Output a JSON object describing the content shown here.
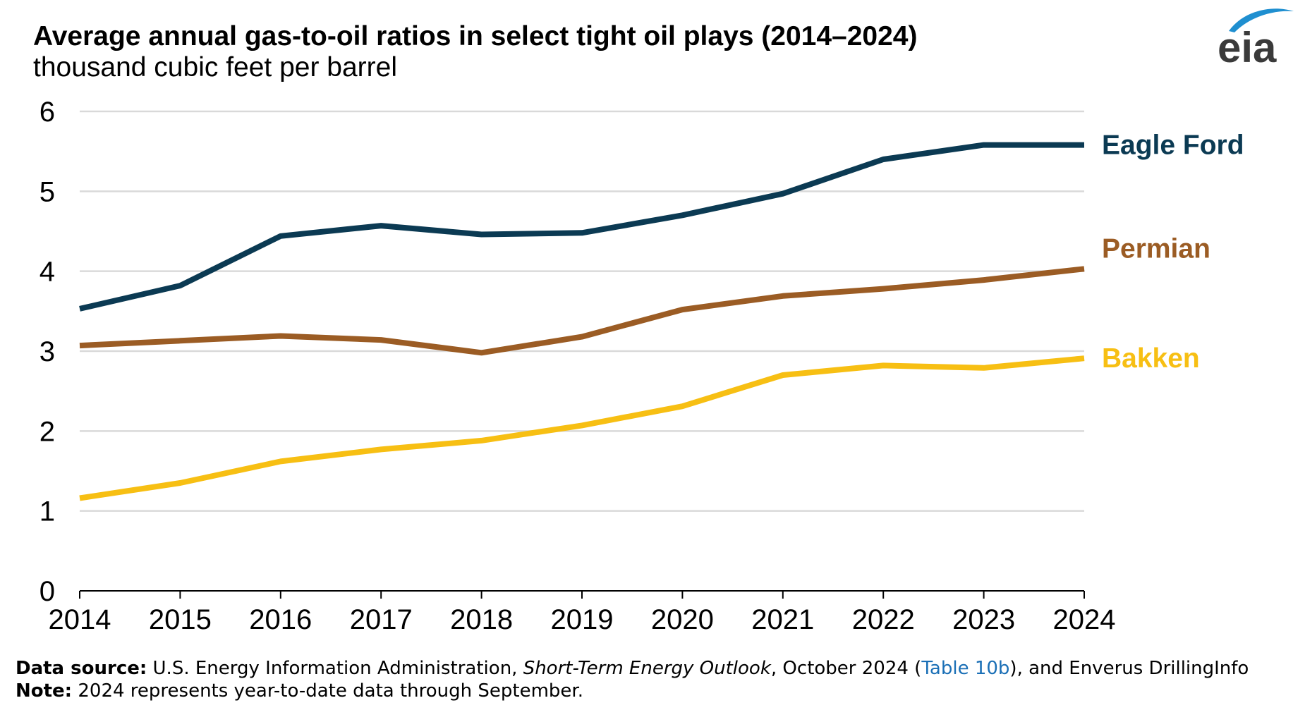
{
  "header": {
    "title": "Average annual gas-to-oil ratios in select tight oil plays (2014–2024)",
    "subtitle": "thousand cubic feet per barrel"
  },
  "logo": {
    "text": "eia",
    "icon": "eia-logo-icon",
    "color": "#3a3a3a",
    "swoosh_color": "#1f8fd0"
  },
  "chart_data": {
    "type": "line",
    "title": "Average annual gas-to-oil ratios in select tight oil plays (2014–2024)",
    "ylabel": "thousand cubic feet per barrel",
    "xlabel": "",
    "x": [
      "2014",
      "2015",
      "2016",
      "2017",
      "2018",
      "2019",
      "2020",
      "2021",
      "2022",
      "2023",
      "2024"
    ],
    "ylim": [
      0,
      6
    ],
    "yticks": [
      "0",
      "1",
      "2",
      "3",
      "4",
      "5",
      "6"
    ],
    "grid": true,
    "legend": "inline-right",
    "series": [
      {
        "name": "Eagle Ford",
        "color": "#0b3a53",
        "values": [
          3.53,
          3.82,
          4.44,
          4.57,
          4.46,
          4.48,
          4.7,
          4.97,
          5.4,
          5.58,
          5.58
        ]
      },
      {
        "name": "Permian",
        "color": "#9b5c24",
        "values": [
          3.07,
          3.13,
          3.19,
          3.14,
          2.98,
          3.18,
          3.52,
          3.69,
          3.78,
          3.89,
          4.03
        ]
      },
      {
        "name": "Bakken",
        "color": "#f7bf13",
        "values": [
          1.16,
          1.35,
          1.62,
          1.77,
          1.88,
          2.07,
          2.31,
          2.7,
          2.82,
          2.79,
          2.91
        ]
      }
    ]
  },
  "footer": {
    "source_label": "Data source:",
    "source_pre": " U.S. Energy Information Administration, ",
    "source_italic": "Short-Term Energy Outlook",
    "source_mid": ", October 2024 (",
    "source_link": "Table 10b",
    "source_post": "), and Enverus DrillingInfo",
    "note_label": "Note:",
    "note_text": " 2024 represents year-to-date data through September."
  }
}
